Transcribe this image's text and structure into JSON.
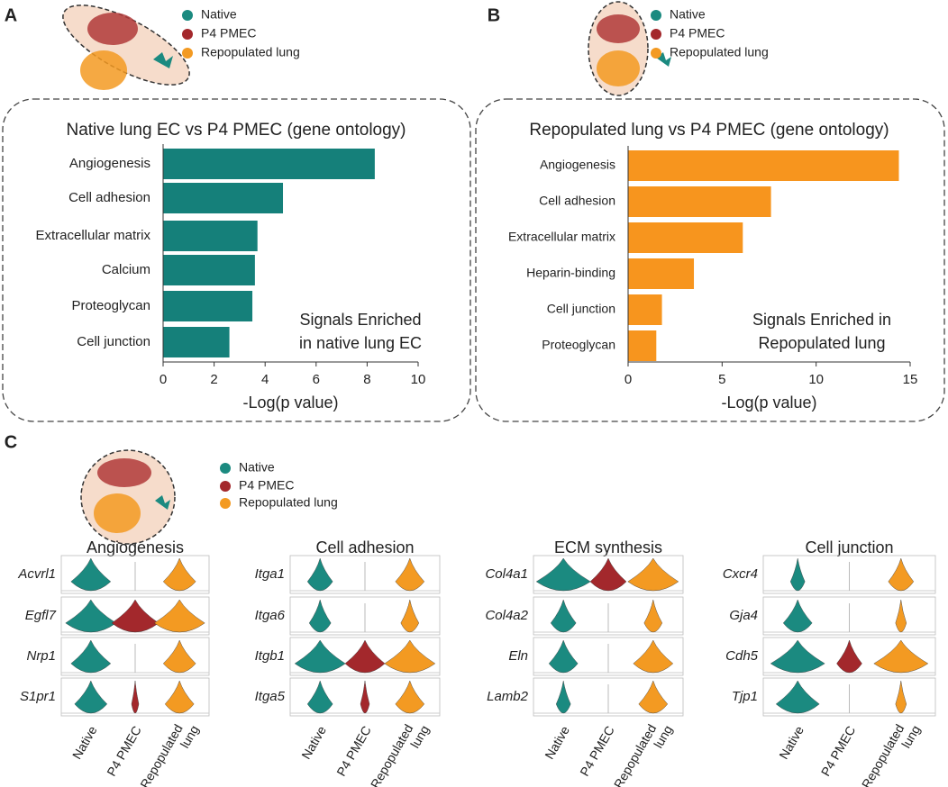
{
  "chart_data": [
    {
      "type": "bar",
      "letter": "A",
      "title": "Native lung EC vs P4 PMEC (gene ontology)",
      "legend": [
        {
          "name": "Native",
          "color": "#1b8a80"
        },
        {
          "name": "P4 PMEC",
          "color": "#a3282c"
        },
        {
          "name": "Repopulated lung",
          "color": "#f39a22"
        }
      ],
      "categories": [
        "Angiogenesis",
        "Cell adhesion",
        "Extracellular matrix",
        "Calcium",
        "Proteoglycan",
        "Cell junction"
      ],
      "values": [
        8.3,
        4.7,
        3.7,
        3.6,
        3.5,
        2.6
      ],
      "color": "#15807a",
      "xlim": [
        0,
        10
      ],
      "xticks": [
        0,
        2,
        4,
        6,
        8,
        10
      ],
      "xlabel": "-Log(p value)",
      "annotation": [
        "Signals Enriched",
        "in native lung EC"
      ]
    },
    {
      "type": "bar",
      "letter": "B",
      "title": "Repopulated lung vs P4 PMEC (gene ontology)",
      "legend": [
        {
          "name": "Native",
          "color": "#1b8a80"
        },
        {
          "name": "P4 PMEC",
          "color": "#a3282c"
        },
        {
          "name": "Repopulated lung",
          "color": "#f39a22"
        }
      ],
      "categories": [
        "Angiogenesis",
        "Cell adhesion",
        "Extracellular matrix",
        "Heparin-binding",
        "Cell junction",
        "Proteoglycan"
      ],
      "values": [
        14.4,
        7.6,
        6.1,
        3.5,
        1.8,
        1.5
      ],
      "color": "#f7951e",
      "xlim": [
        0,
        15
      ],
      "xticks": [
        0,
        5,
        10,
        15
      ],
      "xlabel": "-Log(p value)",
      "annotation": [
        "Signals Enriched in",
        "Repopulated lung"
      ]
    },
    {
      "type": "violin",
      "letter": "C",
      "legend": [
        {
          "name": "Native",
          "color": "#1b8a80"
        },
        {
          "name": "P4 PMEC",
          "color": "#a3282c"
        },
        {
          "name": "Repopulated lung",
          "color": "#f39a22"
        }
      ],
      "categories": [
        "Native",
        "P4 PMEC",
        "Repopulated lung"
      ],
      "panels": [
        {
          "title": "Angiogenesis",
          "genes": [
            "Acvrl1",
            "Egfl7",
            "Nrp1",
            "S1pr1"
          ]
        },
        {
          "title": "Cell adhesion",
          "genes": [
            "Itga1",
            "Itga6",
            "Itgb1",
            "Itga5"
          ]
        },
        {
          "title": "ECM synthesis",
          "genes": [
            "Col4a1",
            "Col4a2",
            "Eln",
            "Lamb2"
          ]
        },
        {
          "title": "Cell junction",
          "genes": [
            "Cxcr4",
            "Gja4",
            "Cdh5",
            "Tjp1"
          ]
        }
      ]
    }
  ]
}
